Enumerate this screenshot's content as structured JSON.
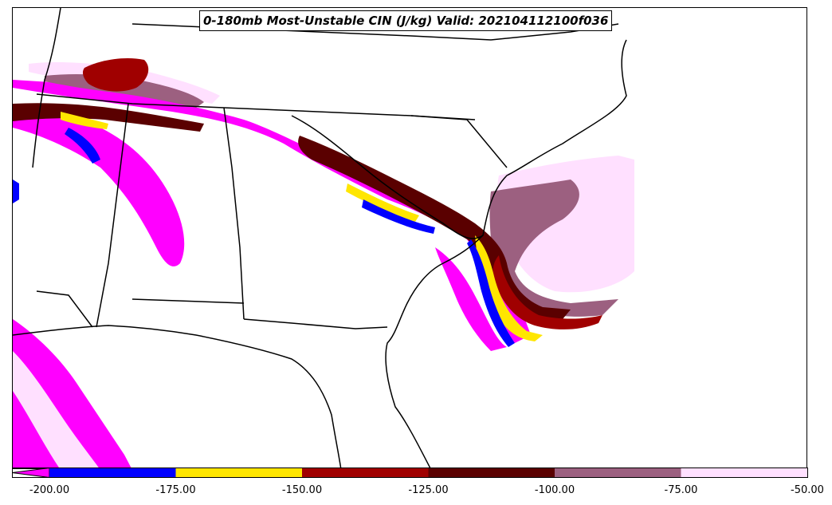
{
  "title": "0-180mb Most-Unstable CIN (J/kg) Valid: 202104112100f036",
  "colorbar": {
    "ticks": [
      "-200.00",
      "-175.00",
      "-150.00",
      "-125.00",
      "-100.00",
      "-75.00",
      "-50.00"
    ],
    "extend": "min",
    "bins": [
      {
        "range": "< -200",
        "color": "#ff00ff"
      },
      {
        "range": "-200 to -175",
        "color": "#0000ff"
      },
      {
        "range": "-175 to -150",
        "color": "#ffe600"
      },
      {
        "range": "-150 to -125",
        "color": "#a00000"
      },
      {
        "range": "-125 to -100",
        "color": "#5a0000"
      },
      {
        "range": "-100 to -75",
        "color": "#9c6080"
      },
      {
        "range": "-75 to -50",
        "color": "#ffe0ff"
      }
    ]
  }
}
